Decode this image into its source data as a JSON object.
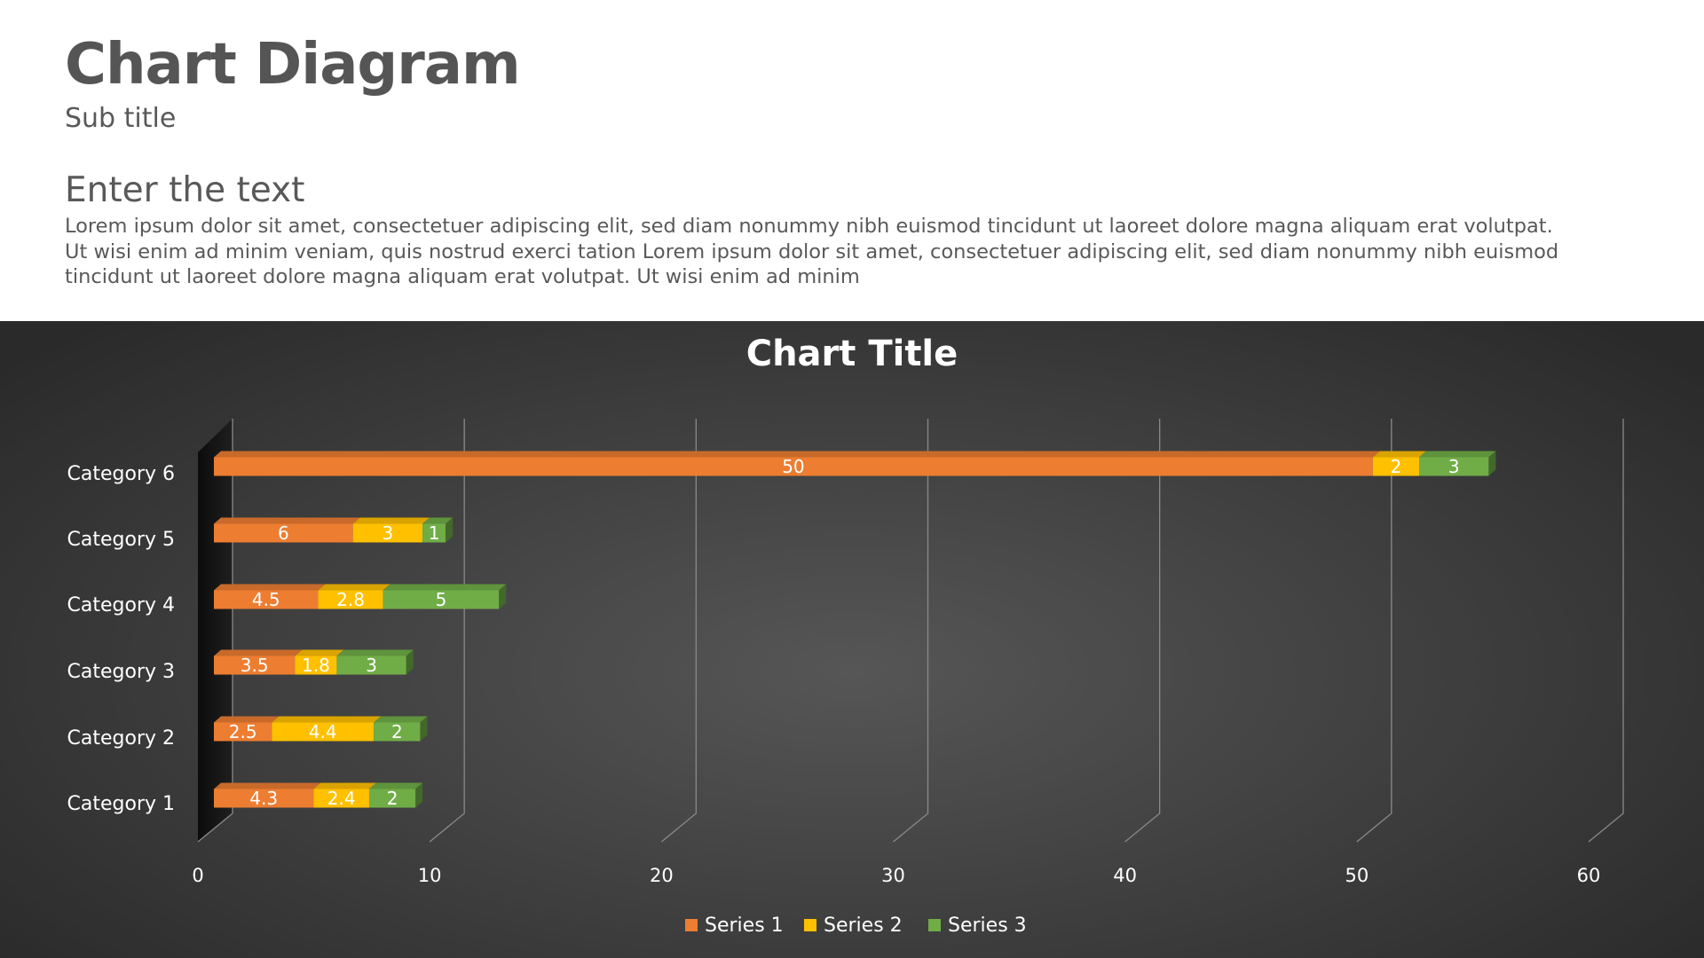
{
  "header": {
    "title": "Chart Diagram",
    "subtitle": "Sub title"
  },
  "content": {
    "heading": "Enter the text",
    "body_lines": [
      "Lorem ipsum dolor sit amet, consectetuer adipiscing elit, sed diam nonummy nibh euismod tincidunt ut laoreet dolore magna aliquam erat volutpat.",
      "Ut wisi enim ad minim veniam, quis nostrud exerci tation Lorem ipsum dolor sit amet, consectetuer adipiscing elit, sed diam nonummy nibh euismod",
      "tincidunt ut laoreet dolore magna aliquam erat volutpat. Ut wisi enim ad minim"
    ]
  },
  "chart_data": {
    "type": "bar",
    "orientation": "horizontal",
    "stacked": true,
    "style": "3d",
    "title": "Chart Title",
    "categories": [
      "Category 1",
      "Category 2",
      "Category 3",
      "Category 4",
      "Category 5",
      "Category 6"
    ],
    "series": [
      {
        "name": "Series 1",
        "color": "#ED7D31",
        "values": [
          4.3,
          2.5,
          3.5,
          4.5,
          6,
          50
        ]
      },
      {
        "name": "Series 2",
        "color": "#FFC000",
        "values": [
          2.4,
          4.4,
          1.8,
          2.8,
          3,
          2
        ]
      },
      {
        "name": "Series 3",
        "color": "#70AD47",
        "values": [
          2,
          2,
          3,
          5,
          1,
          3
        ]
      }
    ],
    "xlim": [
      0,
      60
    ],
    "xticks": [
      "0",
      "10",
      "20",
      "30",
      "40",
      "50",
      "60"
    ],
    "grid": true,
    "data_labels": true,
    "legend": "bottom"
  }
}
